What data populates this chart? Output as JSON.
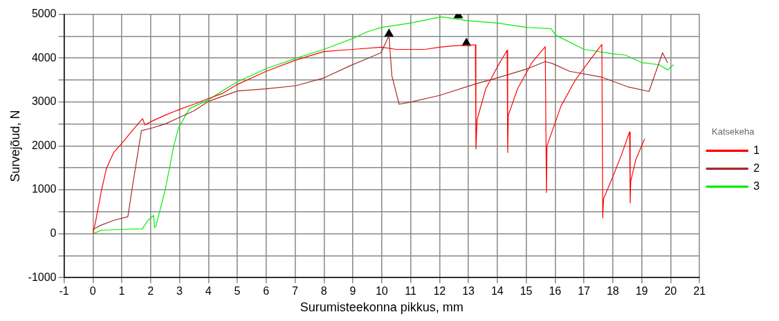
{
  "chart_data": {
    "type": "line",
    "xlabel": "Surumisteekonna pikkus, mm",
    "ylabel": "Survejõud, N",
    "legend_title": "Katsekeha",
    "legend": "right",
    "grid": true,
    "marker": "none",
    "line_style": "solid",
    "xlim": [
      -1,
      21
    ],
    "xticks": [
      -1,
      0,
      1,
      2,
      3,
      4,
      5,
      6,
      7,
      8,
      9,
      10,
      11,
      12,
      13,
      14,
      15,
      16,
      17,
      18,
      19,
      20,
      21
    ],
    "ylim": [
      -1000,
      5000
    ],
    "yticks": [
      -1000,
      {
        "value": -500,
        "label": null
      },
      0,
      {
        "value": 500,
        "label": null
      },
      1000,
      {
        "value": 1500,
        "label": null
      },
      2000,
      {
        "value": 2500,
        "label": null
      },
      3000,
      {
        "value": 3500,
        "label": null
      },
      4000,
      {
        "value": 4500,
        "label": null
      },
      5000
    ],
    "series": [
      {
        "name": "1",
        "color": "#ff0000",
        "x": [
          0,
          0.1,
          0.3,
          0.47,
          0.72,
          1.03,
          1.3,
          1.72,
          1.8,
          2,
          2.5,
          3.07,
          3.5,
          4,
          4.5,
          5,
          6,
          7,
          8,
          9,
          10,
          10.5,
          11,
          11.5,
          12,
          12.5,
          13,
          13.24,
          13.26,
          13.3,
          13.6,
          14,
          14.34,
          14.36,
          14.38,
          14.7,
          15.2,
          15.66,
          15.7,
          15.72,
          16.2,
          16.7,
          17.2,
          17.62,
          17.65,
          17.68,
          18,
          18.3,
          18.58,
          18.6,
          18.62,
          18.8,
          19.1
        ],
        "values": [
          0,
          300,
          1000,
          1490,
          1850,
          2080,
          2300,
          2620,
          2480,
          2550,
          2700,
          2850,
          2950,
          3080,
          3200,
          3400,
          3700,
          3950,
          4150,
          4200,
          4250,
          4200,
          4200,
          4200,
          4250,
          4280,
          4300,
          4300,
          1930,
          2600,
          3300,
          3800,
          4180,
          1850,
          2700,
          3300,
          3900,
          4260,
          940,
          2000,
          2900,
          3500,
          3950,
          4310,
          360,
          800,
          1300,
          1800,
          2320,
          700,
          1200,
          1700,
          2160
        ]
      },
      {
        "name": "2",
        "color": "#a52a2a",
        "x": [
          0,
          0.3,
          0.7,
          1.21,
          1.4,
          1.68,
          2,
          2.5,
          3,
          3.5,
          3.98,
          5,
          6,
          7.02,
          8,
          8.95,
          9.97,
          10.25,
          10.35,
          10.6,
          11,
          12,
          13.28,
          14,
          15,
          15.66,
          15.9,
          16.5,
          17.6,
          18.5,
          19.25,
          19.72,
          19.9
        ],
        "values": [
          100,
          200,
          300,
          390,
          1200,
          2350,
          2400,
          2500,
          2650,
          2800,
          3010,
          3250,
          3300,
          3370,
          3550,
          3840,
          4120,
          4510,
          3600,
          2950,
          3000,
          3150,
          3420,
          3550,
          3750,
          3920,
          3880,
          3700,
          3570,
          3350,
          3240,
          4120,
          3890
        ]
      },
      {
        "name": "3",
        "color": "#00ee00",
        "x": [
          0,
          0.3,
          1,
          1.71,
          1.9,
          2.1,
          2.14,
          2.18,
          2.51,
          2.8,
          2.96,
          3.34,
          4,
          4.5,
          5,
          6,
          7,
          8,
          9,
          9.5,
          10,
          11,
          12.07,
          13,
          14,
          15,
          15.86,
          16.03,
          17,
          18,
          18.43,
          19,
          19.6,
          19.9,
          20.1
        ],
        "values": [
          0,
          80,
          100,
          110,
          300,
          420,
          140,
          170,
          1020,
          2000,
          2400,
          2850,
          3050,
          3260,
          3460,
          3760,
          3990,
          4200,
          4450,
          4600,
          4700,
          4800,
          4940,
          4850,
          4800,
          4700,
          4670,
          4520,
          4200,
          4100,
          4070,
          3900,
          3850,
          3730,
          3850
        ]
      },
      {
        "type": "scatter",
        "marker": "triangle",
        "color": "#000000",
        "x": [
          10.25,
          12.65,
          12.93
        ],
        "values": [
          4550,
          4970,
          4340
        ]
      }
    ]
  }
}
